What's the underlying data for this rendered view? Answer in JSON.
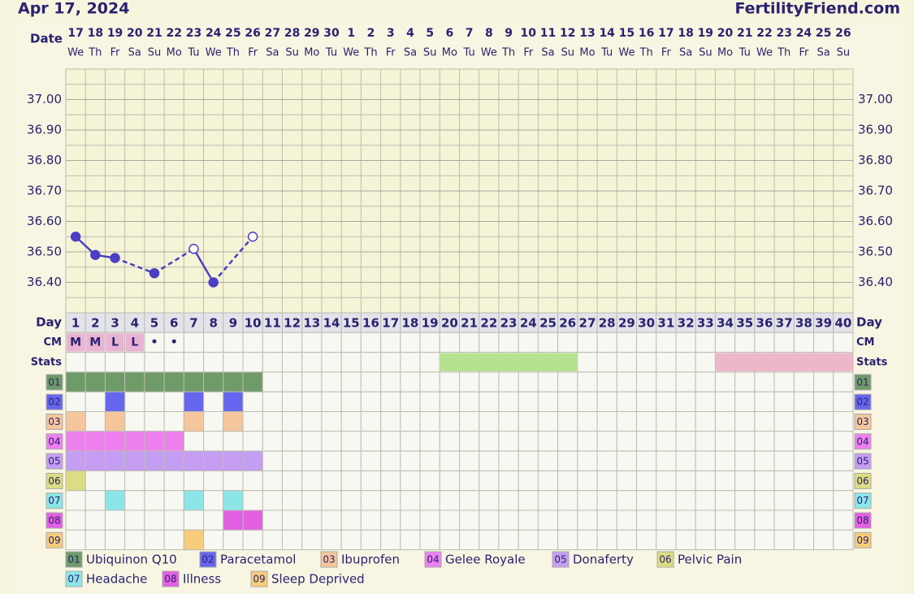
{
  "header": {
    "date": "Apr 17, 2024",
    "site": "FertilityFriend.com"
  },
  "chart_data": {
    "type": "line",
    "labels": {
      "date": "Date",
      "day": "Day",
      "cm": "CM",
      "stats": "Stats"
    },
    "categories": [
      1,
      2,
      3,
      4,
      5,
      6,
      7,
      8,
      9,
      10,
      11,
      12,
      13,
      14,
      15,
      16,
      17,
      18,
      19,
      20,
      21,
      22,
      23,
      24,
      25,
      26,
      27,
      28,
      29,
      30,
      31,
      32,
      33,
      34,
      35,
      36,
      37,
      38,
      39,
      40
    ],
    "dates": [
      "17",
      "18",
      "19",
      "20",
      "21",
      "22",
      "23",
      "24",
      "25",
      "26",
      "27",
      "28",
      "29",
      "30",
      "1",
      "2",
      "3",
      "4",
      "5",
      "6",
      "7",
      "8",
      "9",
      "10",
      "11",
      "12",
      "13",
      "14",
      "15",
      "16",
      "17",
      "18",
      "19",
      "20",
      "21",
      "22",
      "23",
      "24",
      "25",
      "26"
    ],
    "weekdays": [
      "We",
      "Th",
      "Fr",
      "Sa",
      "Su",
      "Mo",
      "Tu",
      "We",
      "Th",
      "Fr",
      "Sa",
      "Su",
      "Mo",
      "Tu",
      "We",
      "Th",
      "Fr",
      "Sa",
      "Su",
      "Mo",
      "Tu",
      "We",
      "Th",
      "Fr",
      "Sa",
      "Su",
      "Mo",
      "Tu",
      "We",
      "Th",
      "Fr",
      "Sa",
      "Su",
      "Mo",
      "Tu",
      "We",
      "Th",
      "Fr",
      "Sa",
      "Su"
    ],
    "values": [
      36.55,
      36.49,
      36.48,
      null,
      36.43,
      null,
      36.51,
      36.4,
      null,
      36.55,
      null,
      null,
      null,
      null,
      null,
      null,
      null,
      null,
      null,
      null,
      null,
      null,
      null,
      null,
      null,
      null,
      null,
      null,
      null,
      null,
      null,
      null,
      null,
      null,
      null,
      null,
      null,
      null,
      null,
      null
    ],
    "markers": [
      "filled",
      "filled",
      "filled",
      null,
      "filled",
      null,
      "open",
      "filled",
      null,
      "open",
      null,
      null,
      null,
      null,
      null,
      null,
      null,
      null,
      null,
      null,
      null,
      null,
      null,
      null,
      null,
      null,
      null,
      null,
      null,
      null,
      null,
      null,
      null,
      null,
      null,
      null,
      null,
      null,
      null,
      null
    ],
    "color": "#4a3fc4",
    "ylim": [
      36.3,
      37.1
    ],
    "yticks": [
      {
        "value": 36.4,
        "label": "36.40"
      },
      {
        "value": 36.5,
        "label": "36.50"
      },
      {
        "value": 36.6,
        "label": "36.60"
      },
      {
        "value": 36.7,
        "label": "36.70"
      },
      {
        "value": 36.8,
        "label": "36.80"
      },
      {
        "value": 36.9,
        "label": "36.90"
      },
      {
        "value": 37.0,
        "label": "37.00"
      }
    ],
    "grid": true,
    "cm": [
      "M",
      "M",
      "L",
      "L",
      "•",
      "•",
      null,
      null,
      null,
      null,
      null,
      null,
      null,
      null,
      null,
      null,
      null,
      null,
      null,
      null,
      null,
      null,
      null,
      null,
      null,
      null,
      null,
      null,
      null,
      null,
      null,
      null,
      null,
      null,
      null,
      null,
      null,
      null,
      null,
      null
    ],
    "cm_colors": [
      "#e9b3d3",
      "#e9b3d3",
      "#e9b3d3",
      "#e9b3d3",
      null,
      null,
      null,
      null,
      null,
      null,
      null,
      null,
      null,
      null,
      null,
      null,
      null,
      null,
      null,
      null,
      null,
      null,
      null,
      null,
      null,
      null,
      null,
      null,
      null,
      null,
      null,
      null,
      null,
      null,
      null,
      null,
      null,
      null,
      null,
      null
    ],
    "stats_bands": [
      {
        "from": 20,
        "to": 26,
        "color": "#b5e28f"
      },
      {
        "from": 34,
        "to": 40,
        "color": "#ebb7c9"
      }
    ],
    "rows": [
      {
        "code": "01",
        "name": "Ubiquinon Q10",
        "color": "#6e9b68",
        "days": [
          1,
          2,
          3,
          4,
          5,
          6,
          7,
          8,
          9,
          10
        ]
      },
      {
        "code": "02",
        "name": "Paracetamol",
        "color": "#6666ee",
        "days": [
          3,
          7,
          9
        ]
      },
      {
        "code": "03",
        "name": "Ibuprofen",
        "color": "#f5c59c",
        "days": [
          1,
          3,
          7,
          9
        ]
      },
      {
        "code": "04",
        "name": "Gelee Royale",
        "color": "#ee80ee",
        "days": [
          1,
          2,
          3,
          4,
          5,
          6
        ]
      },
      {
        "code": "05",
        "name": "Donaferty",
        "color": "#c59ef3",
        "days": [
          1,
          2,
          3,
          4,
          5,
          6,
          7,
          8,
          9,
          10
        ]
      },
      {
        "code": "06",
        "name": "Pelvic Pain",
        "color": "#dcdc82",
        "days": [
          1
        ]
      },
      {
        "code": "07",
        "name": "Headache",
        "color": "#8ce6e8",
        "days": [
          3,
          7,
          9
        ]
      },
      {
        "code": "08",
        "name": "Illness",
        "color": "#e45fe4",
        "days": [
          9,
          10
        ]
      },
      {
        "code": "09",
        "name": "Sleep Deprived",
        "color": "#f6cc7a",
        "days": [
          7
        ]
      }
    ]
  }
}
